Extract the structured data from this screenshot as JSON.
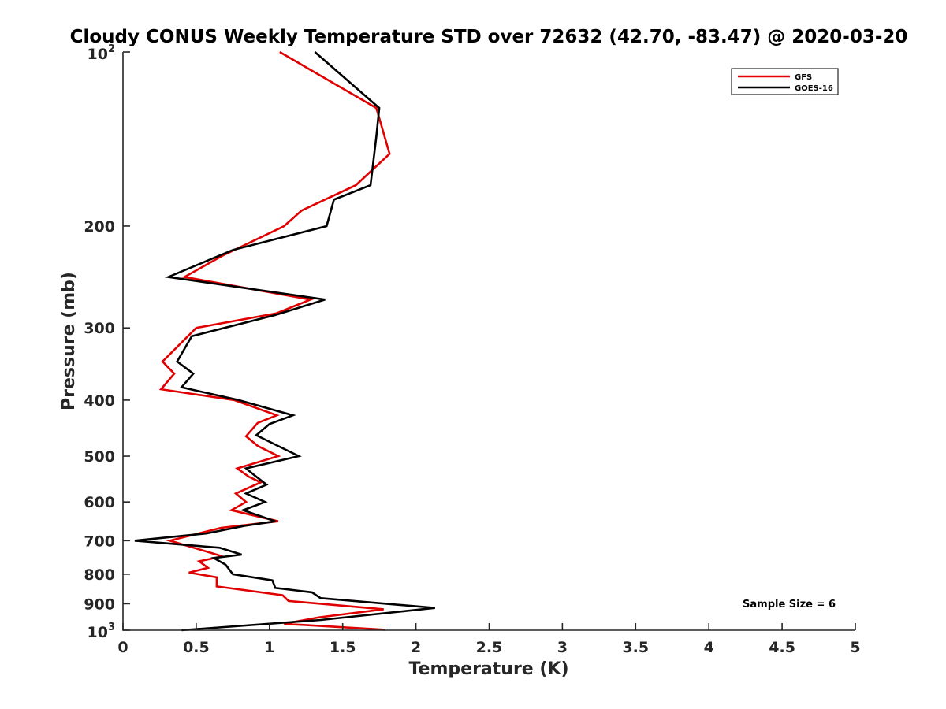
{
  "chart_data": {
    "type": "line",
    "title": "Cloudy CONUS Weekly Temperature STD over 72632 (42.70, -83.47) @ 2020-03-20",
    "xlabel": "Temperature (K)",
    "ylabel": "Pressure (mb)",
    "xlim": [
      0,
      5
    ],
    "ylim": [
      100,
      1000
    ],
    "y_scale": "log",
    "y_reversed": true,
    "grid": false,
    "legend_position": "top-right",
    "x_ticks": [
      "0",
      "0.5",
      "1",
      "1.5",
      "2",
      "2.5",
      "3",
      "3.5",
      "4",
      "4.5",
      "5"
    ],
    "x_tick_values": [
      0,
      0.5,
      1,
      1.5,
      2,
      2.5,
      3,
      3.5,
      4,
      4.5,
      5
    ],
    "y_ticks": [
      {
        "value": 100,
        "base": "10",
        "exp": "2"
      },
      {
        "value": 200,
        "label": "200"
      },
      {
        "value": 300,
        "label": "300"
      },
      {
        "value": 400,
        "label": "400"
      },
      {
        "value": 500,
        "label": "500"
      },
      {
        "value": 600,
        "label": "600"
      },
      {
        "value": 700,
        "label": "700"
      },
      {
        "value": 800,
        "label": "800"
      },
      {
        "value": 900,
        "label": "900"
      },
      {
        "value": 1000,
        "base": "10",
        "exp": "3"
      }
    ],
    "series": [
      {
        "name": "GFS",
        "color": "#e00000",
        "points": [
          [
            1.07,
            100
          ],
          [
            1.73,
            125
          ],
          [
            1.82,
            150
          ],
          [
            1.59,
            170
          ],
          [
            1.22,
            188
          ],
          [
            1.1,
            200
          ],
          [
            0.68,
            225
          ],
          [
            0.42,
            245
          ],
          [
            1.28,
            268
          ],
          [
            1.05,
            283
          ],
          [
            0.5,
            300
          ],
          [
            0.27,
            343
          ],
          [
            0.35,
            360
          ],
          [
            0.26,
            383
          ],
          [
            0.76,
            400
          ],
          [
            1.05,
            425
          ],
          [
            0.92,
            438
          ],
          [
            0.84,
            462
          ],
          [
            0.92,
            480
          ],
          [
            1.06,
            500
          ],
          [
            0.78,
            525
          ],
          [
            0.86,
            543
          ],
          [
            0.94,
            555
          ],
          [
            0.77,
            580
          ],
          [
            0.84,
            600
          ],
          [
            0.74,
            620
          ],
          [
            1.06,
            648
          ],
          [
            0.67,
            665
          ],
          [
            0.32,
            700
          ],
          [
            0.68,
            745
          ],
          [
            0.52,
            760
          ],
          [
            0.58,
            780
          ],
          [
            0.45,
            795
          ],
          [
            0.64,
            810
          ],
          [
            0.64,
            840
          ],
          [
            1.09,
            870
          ],
          [
            1.13,
            890
          ],
          [
            1.78,
            920
          ],
          [
            1.34,
            950
          ],
          [
            1.1,
            975
          ],
          [
            1.79,
            998
          ]
        ]
      },
      {
        "name": "GOES-16",
        "color": "#000000",
        "points": [
          [
            1.31,
            100
          ],
          [
            1.75,
            125
          ],
          [
            1.73,
            140
          ],
          [
            1.69,
            170
          ],
          [
            1.44,
            180
          ],
          [
            1.39,
            200
          ],
          [
            0.75,
            220
          ],
          [
            0.31,
            245
          ],
          [
            1.38,
            268
          ],
          [
            1.04,
            285
          ],
          [
            0.47,
            310
          ],
          [
            0.37,
            343
          ],
          [
            0.48,
            360
          ],
          [
            0.4,
            380
          ],
          [
            0.79,
            400
          ],
          [
            1.16,
            425
          ],
          [
            1.0,
            440
          ],
          [
            0.91,
            460
          ],
          [
            1.2,
            500
          ],
          [
            0.84,
            525
          ],
          [
            0.9,
            540
          ],
          [
            0.98,
            560
          ],
          [
            0.84,
            580
          ],
          [
            0.97,
            600
          ],
          [
            0.82,
            620
          ],
          [
            1.04,
            648
          ],
          [
            0.83,
            660
          ],
          [
            0.57,
            680
          ],
          [
            0.08,
            700
          ],
          [
            0.66,
            720
          ],
          [
            0.81,
            740
          ],
          [
            0.62,
            750
          ],
          [
            0.7,
            770
          ],
          [
            0.75,
            800
          ],
          [
            1.02,
            820
          ],
          [
            1.04,
            845
          ],
          [
            1.29,
            860
          ],
          [
            1.35,
            880
          ],
          [
            2.13,
            915
          ],
          [
            1.35,
            960
          ],
          [
            0.4,
            1000
          ]
        ]
      }
    ],
    "annotations": [
      "Sample Size = 6"
    ]
  }
}
